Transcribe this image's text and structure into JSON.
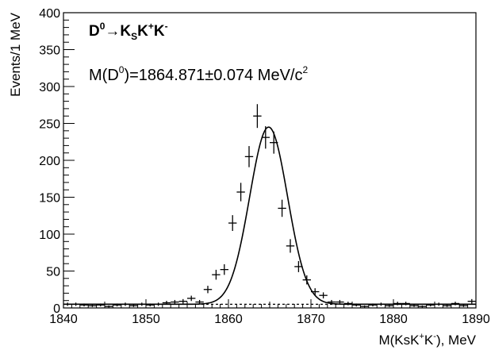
{
  "chart_data": {
    "type": "scatter",
    "title_parts": {
      "d": "D",
      "zero": "0",
      "arrow": "→",
      "k": "K",
      "s": "S",
      "k2": "K",
      "plus": "+",
      "k3": "K",
      "minus": "-"
    },
    "fit_parts": {
      "prefix": "M(D",
      "zero": "0",
      "value": ")=1864.871±0.074 MeV/c",
      "sq": "2"
    },
    "xlabel_parts": {
      "prefix": "M(KsK",
      "plus": "+",
      "k": "K",
      "minus": "-",
      "suffix": "), MeV"
    },
    "ylabel": "Events/1 MeV",
    "xlim": [
      1840,
      1890
    ],
    "ylim": [
      0,
      400
    ],
    "x_ticks": [
      1840,
      1850,
      1860,
      1870,
      1880,
      1890
    ],
    "y_ticks": [
      0,
      50,
      100,
      150,
      200,
      250,
      300,
      350,
      400
    ],
    "series": [
      {
        "values_x": [
          1840.5,
          1841.5,
          1842.5,
          1843.5,
          1844.5,
          1845.5,
          1846.5,
          1847.5,
          1848.5,
          1849.5,
          1850.5,
          1851.5,
          1852.5,
          1853.5,
          1854.5,
          1855.5,
          1856.5,
          1857.5,
          1858.5,
          1859.5,
          1860.5,
          1861.5,
          1862.5,
          1863.5,
          1864.5,
          1865.5,
          1866.5,
          1867.5,
          1868.5,
          1869.5,
          1870.5,
          1871.5,
          1872.5,
          1873.5,
          1874.5,
          1875.5,
          1876.5,
          1877.5,
          1878.5,
          1879.5,
          1880.5,
          1881.5,
          1882.5,
          1883.5,
          1884.5,
          1885.5,
          1886.5,
          1887.5,
          1888.5,
          1889.5
        ],
        "values_y": [
          5,
          5,
          4,
          3,
          4,
          2,
          4,
          5,
          3,
          5,
          4,
          5,
          7,
          8,
          9,
          13,
          8,
          25,
          45,
          52,
          115,
          157,
          205,
          260,
          231,
          224,
          135,
          84,
          56,
          38,
          22,
          17,
          8,
          8,
          6,
          4,
          2,
          4,
          5,
          3,
          6,
          6,
          3,
          2,
          4,
          5,
          3,
          6,
          3,
          9
        ],
        "errors_y": [
          2.2,
          2.2,
          2,
          1.7,
          2,
          1.4,
          2,
          2.2,
          1.7,
          2.2,
          2,
          2.2,
          2.6,
          2.8,
          3,
          3.6,
          2.8,
          5,
          6.7,
          7.2,
          10.7,
          12.5,
          14.3,
          16.1,
          15.2,
          15,
          11.6,
          9.2,
          7.5,
          6.2,
          4.7,
          4.1,
          2.8,
          2.8,
          2.4,
          2,
          1.4,
          2,
          2.2,
          1.7,
          2.4,
          2.4,
          1.7,
          1.4,
          2,
          2.2,
          1.7,
          2.4,
          1.7,
          3
        ]
      }
    ],
    "fit": {
      "mean": 1864.871,
      "amplitude": 240,
      "sigma": 2.3,
      "background": 5
    }
  }
}
